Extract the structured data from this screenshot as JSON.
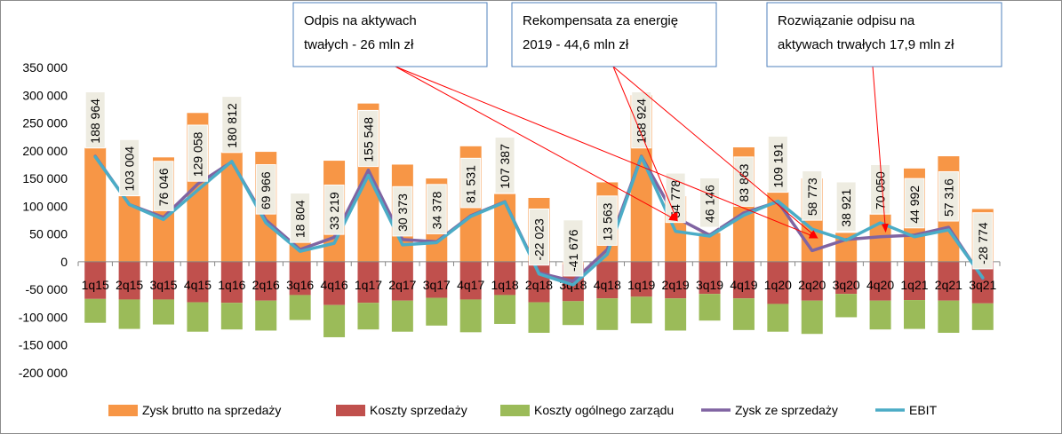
{
  "chart_data": {
    "type": "bar",
    "stacked": true,
    "categories": [
      "1q15",
      "2q15",
      "3q15",
      "4q15",
      "1q16",
      "2q16",
      "3q16",
      "4q16",
      "1q17",
      "2q17",
      "3q17",
      "4q17",
      "1q18",
      "2q18",
      "3q18",
      "4q18",
      "1q19",
      "2q19",
      "3q19",
      "4q19",
      "1q20",
      "2q20",
      "3q20",
      "4q20",
      "1q21",
      "2q21",
      "3q21"
    ],
    "ylim": [
      -200000,
      350000
    ],
    "yticks": [
      350000,
      300000,
      250000,
      200000,
      150000,
      100000,
      50000,
      0,
      -50000,
      -100000,
      -150000,
      -200000
    ],
    "ytick_labels": [
      "350 000",
      "300 000",
      "250 000",
      "200 000",
      "150 000",
      "100 000",
      "50 000",
      "0",
      "-50 000",
      "-100 000",
      "-150 000",
      "-200 000"
    ],
    "series": [
      {
        "name": "Zysk brutto na sprzedaży",
        "kind": "bar",
        "color": "#F79646",
        "values": [
          205000,
          118000,
          188000,
          268000,
          197000,
          198000,
          35000,
          182000,
          285000,
          175000,
          150000,
          208000,
          122000,
          115000,
          -5000,
          143000,
          300000,
          118000,
          52000,
          206000,
          125000,
          150000,
          52000,
          85000,
          168000,
          190000,
          95000
        ]
      },
      {
        "name": "Koszty sprzedaży",
        "kind": "bar",
        "color": "#C0504D",
        "values": [
          -67000,
          -68000,
          -68000,
          -73000,
          -74000,
          -70000,
          -60000,
          -78000,
          -74000,
          -70000,
          -65000,
          -68000,
          -60000,
          -73000,
          -66000,
          -66000,
          -63000,
          -66000,
          -58000,
          -66000,
          -76000,
          -70000,
          -58000,
          -70000,
          -69000,
          -70000,
          -75000
        ]
      },
      {
        "name": "Koszty ogólnego zarządu",
        "kind": "bar",
        "color": "#9BBB59",
        "values": [
          -43000,
          -53000,
          -45000,
          -53000,
          -48000,
          -54000,
          -45000,
          -58000,
          -48000,
          -56000,
          -50000,
          -59000,
          -52000,
          -55000,
          -43000,
          -57000,
          -48000,
          -58000,
          -48000,
          -57000,
          -50000,
          -60000,
          -42000,
          -52000,
          -52000,
          -58000,
          -48000
        ]
      },
      {
        "name": "Zysk ze sprzedaży",
        "kind": "line",
        "color": "#8064A2",
        "values": [
          190000,
          103000,
          80000,
          140000,
          180000,
          75000,
          22000,
          44000,
          165000,
          40000,
          36000,
          83000,
          108000,
          -20000,
          -35000,
          22000,
          190000,
          80000,
          48000,
          88000,
          108000,
          20000,
          40000,
          45000,
          48000,
          62000,
          -30000
        ]
      },
      {
        "name": "EBIT",
        "kind": "line",
        "color": "#4BACC6",
        "values": [
          188964,
          103004,
          76046,
          129058,
          180812,
          69966,
          18804,
          33219,
          155548,
          30373,
          34378,
          81531,
          107387,
          -22023,
          -41676,
          13563,
          188924,
          54778,
          46146,
          83863,
          109191,
          58773,
          38921,
          70050,
          44992,
          57316,
          -28774
        ]
      }
    ],
    "data_labels": [
      "188 964",
      "103 004",
      "76 046",
      "129 058",
      "180 812",
      "69 966",
      "18 804",
      "33 219",
      "155 548",
      "30 373",
      "34 378",
      "81 531",
      "107 387",
      "-22 023",
      "-41 676",
      "13 563",
      "188 924",
      "54 778",
      "46 146",
      "83 863",
      "109 191",
      "58 773",
      "38 921",
      "70 050",
      "44 992",
      "57 316",
      "-28 774"
    ],
    "legend": {
      "placement": "bottom"
    },
    "grid": false,
    "annotations": [
      {
        "text_lines": [
          "Odpis na aktywach",
          "twałych - 26 mln zł"
        ],
        "points_to": "2q20"
      },
      {
        "text_lines": [
          "Rekompensata za energię",
          "2019 - 44,6 mln  zł"
        ],
        "points_to": "2q20"
      },
      {
        "text_lines": [
          "Rozwiązanie odpisu na",
          "aktywach trwałych 17,9 mln zł"
        ],
        "points_to": "4q20"
      }
    ],
    "annotation_arrow_color": "#FF0000"
  }
}
